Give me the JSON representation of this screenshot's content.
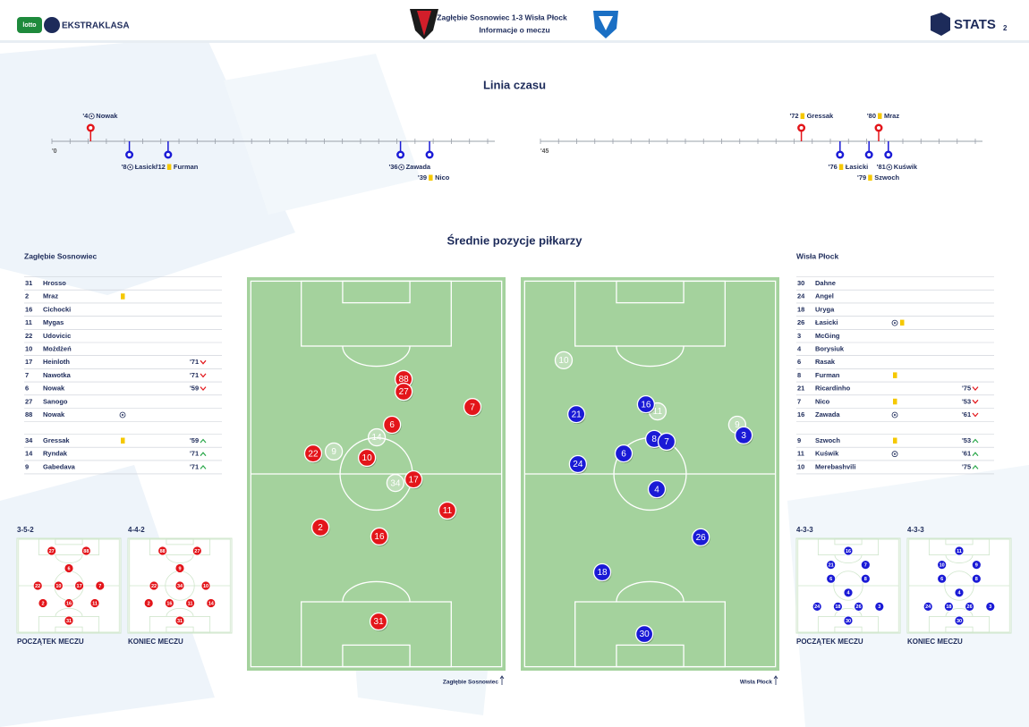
{
  "header": {
    "sponsor": "lotto",
    "league": "EKSTRAKLASA",
    "title": "Zagłębie Sosnowiec 1-3 Wisła Płock",
    "subtitle": "Informacje o meczu",
    "brand": "STATS",
    "brand_suffix": "2"
  },
  "timeline": {
    "title": "Linia czasu",
    "halves": [
      {
        "range": [
          0,
          45
        ],
        "start_label": "'0",
        "events": [
          {
            "minute": 4,
            "minute_label": "'4",
            "type": "goal",
            "side": "home",
            "player": "Nowak"
          },
          {
            "minute": 8,
            "minute_label": "'8",
            "type": "goal",
            "side": "away",
            "player": "Łasicki"
          },
          {
            "minute": 12,
            "minute_label": "'12",
            "type": "card",
            "side": "away",
            "player": "Furman"
          },
          {
            "minute": 36,
            "minute_label": "'36",
            "type": "goal",
            "side": "away",
            "player": "Zawada"
          },
          {
            "minute": 39,
            "minute_label": "'39",
            "type": "card",
            "side": "away",
            "player": "Nico"
          }
        ]
      },
      {
        "range": [
          45,
          90
        ],
        "start_label": "'45",
        "events": [
          {
            "minute": 72,
            "minute_label": "'72",
            "type": "card",
            "side": "home",
            "player": "Gressak"
          },
          {
            "minute": 76,
            "minute_label": "'76",
            "type": "card",
            "side": "away",
            "player": "Łasicki"
          },
          {
            "minute": 79,
            "minute_label": "'79",
            "type": "card",
            "side": "away",
            "player": "Szwoch"
          },
          {
            "minute": 80,
            "minute_label": "'80",
            "type": "card",
            "side": "home",
            "player": "Mraz"
          },
          {
            "minute": 81,
            "minute_label": "'81",
            "type": "goal",
            "side": "away",
            "player": "Kuświk"
          }
        ]
      }
    ]
  },
  "positions": {
    "title": "Średnie pozycje piłkarzy",
    "teams": [
      {
        "name": "Zagłębie Sosnowiec",
        "color": "#e3151a",
        "players": [
          {
            "number": 31,
            "name": "Hrosso",
            "events": []
          },
          {
            "number": 2,
            "name": "Mraz",
            "events": [
              "card"
            ]
          },
          {
            "number": 16,
            "name": "Cichocki",
            "events": []
          },
          {
            "number": 11,
            "name": "Mygas",
            "events": []
          },
          {
            "number": 22,
            "name": "Udovicic",
            "events": []
          },
          {
            "number": 10,
            "name": "Możdżeń",
            "events": []
          },
          {
            "number": 17,
            "name": "Heinloth",
            "events": [],
            "sub": "'71",
            "sub_dir": "out"
          },
          {
            "number": 7,
            "name": "Nawotka",
            "events": [],
            "sub": "'71",
            "sub_dir": "out"
          },
          {
            "number": 6,
            "name": "Nowak",
            "events": [],
            "sub": "'59",
            "sub_dir": "out"
          },
          {
            "number": 27,
            "name": "Sanogo",
            "events": []
          },
          {
            "number": 88,
            "name": "Nowak",
            "events": [
              "goal"
            ]
          }
        ],
        "subs": [
          {
            "number": 34,
            "name": "Gressak",
            "events": [
              "card"
            ],
            "sub": "'59",
            "sub_dir": "in"
          },
          {
            "number": 14,
            "name": "Ryndak",
            "events": [],
            "sub": "'71",
            "sub_dir": "in"
          },
          {
            "number": 9,
            "name": "Gabedava",
            "events": [],
            "sub": "'71",
            "sub_dir": "in"
          }
        ],
        "pitch": [
          {
            "number": 88,
            "x": 60.6,
            "y": 25.9,
            "starter": true
          },
          {
            "number": 27,
            "x": 60.6,
            "y": 29.1,
            "starter": true
          },
          {
            "number": 7,
            "x": 87.2,
            "y": 33,
            "starter": true
          },
          {
            "number": 6,
            "x": 56.1,
            "y": 37.5,
            "starter": true
          },
          {
            "number": 14,
            "x": 50.2,
            "y": 40.7,
            "starter": false
          },
          {
            "number": 9,
            "x": 33.6,
            "y": 44.3,
            "starter": false
          },
          {
            "number": 22,
            "x": 25.6,
            "y": 44.8,
            "starter": true
          },
          {
            "number": 10,
            "x": 46.4,
            "y": 45.9,
            "starter": true
          },
          {
            "number": 34,
            "x": 57.4,
            "y": 52.3,
            "starter": false
          },
          {
            "number": 17,
            "x": 64.4,
            "y": 51.4,
            "starter": true
          },
          {
            "number": 11,
            "x": 77.5,
            "y": 59.3,
            "starter": true
          },
          {
            "number": 2,
            "x": 28.4,
            "y": 63.6,
            "starter": true
          },
          {
            "number": 16,
            "x": 51.2,
            "y": 65.9,
            "starter": true
          },
          {
            "number": 31,
            "x": 50.9,
            "y": 87.5,
            "starter": true
          }
        ],
        "formations": [
          {
            "name": "3-5-2",
            "caption": "POCZĄTEK MECZU",
            "rows": [
              [
                27,
                88
              ],
              [
                6
              ],
              [
                22,
                10,
                17,
                7
              ],
              [
                2,
                16,
                11
              ],
              [
                31
              ]
            ]
          },
          {
            "name": "4-4-2",
            "caption": "KONIEC MECZU",
            "rows": [
              [
                88,
                27
              ],
              [
                9
              ],
              [
                22,
                34,
                10
              ],
              [
                2,
                16,
                11,
                14
              ],
              [
                31
              ]
            ]
          }
        ]
      },
      {
        "name": "Wisła Płock",
        "color": "#1a1ad6",
        "players": [
          {
            "number": 30,
            "name": "Dahne",
            "events": []
          },
          {
            "number": 24,
            "name": "Angel",
            "events": []
          },
          {
            "number": 18,
            "name": "Uryga",
            "events": []
          },
          {
            "number": 26,
            "name": "Łasicki",
            "events": [
              "goal",
              "card"
            ]
          },
          {
            "number": 3,
            "name": "McGing",
            "events": []
          },
          {
            "number": 4,
            "name": "Borysiuk",
            "events": []
          },
          {
            "number": 6,
            "name": "Rasak",
            "events": []
          },
          {
            "number": 8,
            "name": "Furman",
            "events": [
              "card"
            ]
          },
          {
            "number": 21,
            "name": "Ricardinho",
            "events": [],
            "sub": "'75",
            "sub_dir": "out"
          },
          {
            "number": 7,
            "name": "Nico",
            "events": [
              "card"
            ],
            "sub": "'53",
            "sub_dir": "out"
          },
          {
            "number": 16,
            "name": "Zawada",
            "events": [
              "goal"
            ],
            "sub": "'61",
            "sub_dir": "out"
          }
        ],
        "subs": [
          {
            "number": 9,
            "name": "Szwoch",
            "events": [
              "card"
            ],
            "sub": "'53",
            "sub_dir": "in"
          },
          {
            "number": 11,
            "name": "Kuświk",
            "events": [
              "goal"
            ],
            "sub": "'61",
            "sub_dir": "in"
          },
          {
            "number": 10,
            "name": "Merebashvili",
            "events": [],
            "sub": "'75",
            "sub_dir": "in"
          }
        ],
        "pitch": [
          {
            "number": 10,
            "x": 16.6,
            "y": 21.1,
            "starter": false
          },
          {
            "number": 11,
            "x": 52.9,
            "y": 34.1,
            "starter": false
          },
          {
            "number": 16,
            "x": 48.4,
            "y": 32.3,
            "starter": true
          },
          {
            "number": 21,
            "x": 21.5,
            "y": 34.8,
            "starter": true
          },
          {
            "number": 9,
            "x": 83.7,
            "y": 37.5,
            "starter": false
          },
          {
            "number": 3,
            "x": 86.2,
            "y": 40.2,
            "starter": true
          },
          {
            "number": 8,
            "x": 51.6,
            "y": 41.1,
            "starter": true
          },
          {
            "number": 7,
            "x": 56.4,
            "y": 41.8,
            "starter": true
          },
          {
            "number": 6,
            "x": 39.8,
            "y": 44.8,
            "starter": true
          },
          {
            "number": 24,
            "x": 22.1,
            "y": 47.5,
            "starter": true
          },
          {
            "number": 4,
            "x": 52.6,
            "y": 53.9,
            "starter": true
          },
          {
            "number": 26,
            "x": 69.6,
            "y": 66.1,
            "starter": true
          },
          {
            "number": 18,
            "x": 31.5,
            "y": 75,
            "starter": true
          },
          {
            "number": 30,
            "x": 47.8,
            "y": 90.7,
            "starter": true
          }
        ],
        "formations": [
          {
            "name": "4-3-3",
            "caption": "POCZĄTEK MECZU",
            "rows": [
              [
                16
              ],
              [
                21,
                7
              ],
              [
                6,
                8
              ],
              [
                4
              ],
              [
                24,
                18,
                26,
                3
              ],
              [
                30
              ]
            ]
          },
          {
            "name": "4-3-3",
            "caption": "KONIEC MECZU",
            "rows": [
              [
                11
              ],
              [
                10,
                9
              ],
              [
                6,
                8
              ],
              [
                4
              ],
              [
                24,
                18,
                26,
                3
              ],
              [
                30
              ]
            ]
          }
        ]
      }
    ]
  }
}
